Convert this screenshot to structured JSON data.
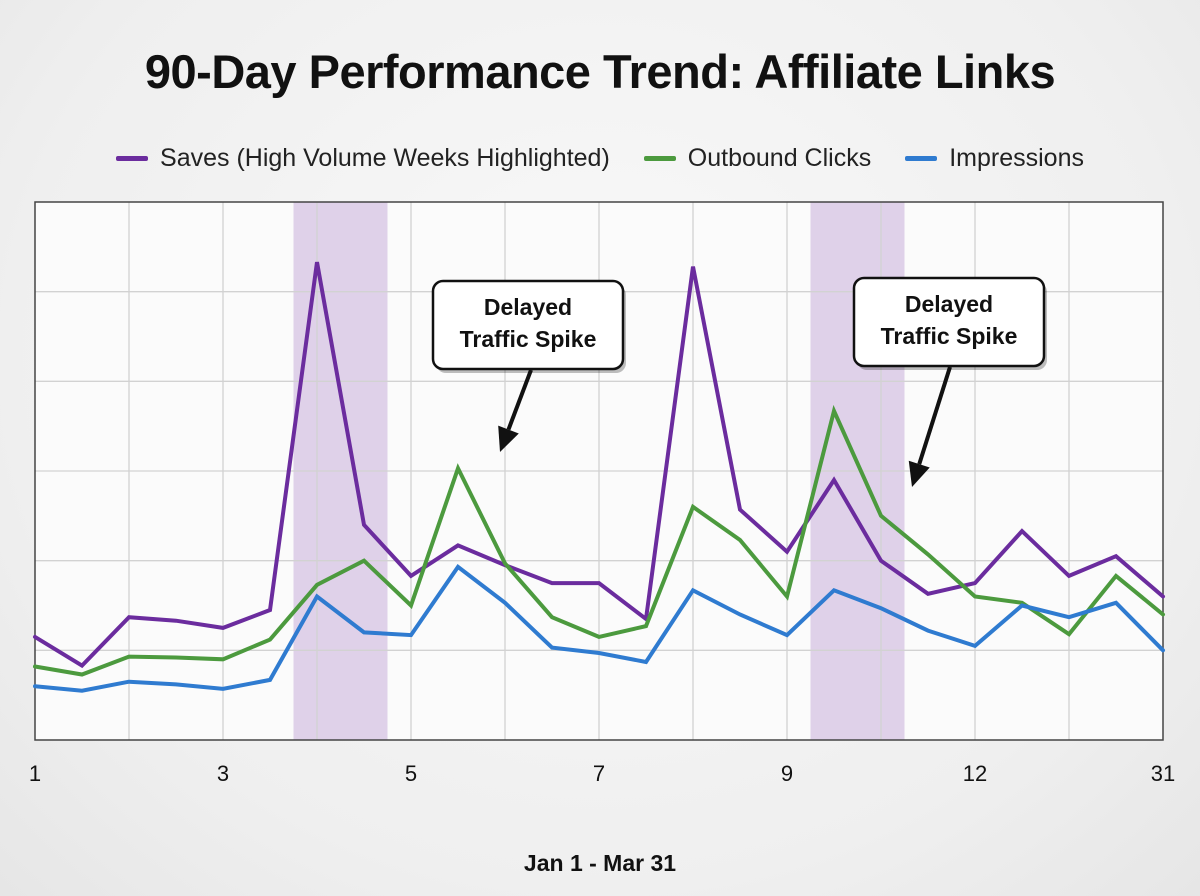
{
  "chart_data": {
    "type": "line",
    "title": "90-Day Performance Trend: Affiliate Links",
    "xlabel": "Jan 1 - Mar 31",
    "ylabel": "",
    "x_tick_labels": [
      "1",
      "3",
      "5",
      "7",
      "9",
      "12",
      "31"
    ],
    "x_count": 25,
    "ylim": [
      0,
      6
    ],
    "grid": true,
    "legend_position": "top",
    "highlight_bands": [
      [
        5.5,
        7.5
      ],
      [
        16.5,
        18.5
      ]
    ],
    "series": [
      {
        "name": "Saves (High Volume Weeks Highlighted)",
        "color": "#6b2c9e",
        "values": [
          1.15,
          0.83,
          1.37,
          1.33,
          1.25,
          1.45,
          5.33,
          2.4,
          1.83,
          2.17,
          1.95,
          1.75,
          1.75,
          1.35,
          5.28,
          2.57,
          2.1,
          2.9,
          2.0,
          1.63,
          1.75,
          2.33,
          1.83,
          2.05,
          1.6
        ]
      },
      {
        "name": "Outbound Clicks",
        "color": "#4c9a3e",
        "values": [
          0.82,
          0.73,
          0.93,
          0.92,
          0.9,
          1.12,
          1.73,
          2.0,
          1.5,
          3.03,
          1.97,
          1.37,
          1.15,
          1.27,
          2.6,
          2.23,
          1.6,
          3.67,
          2.5,
          2.07,
          1.6,
          1.53,
          1.18,
          1.83,
          1.4
        ]
      },
      {
        "name": "Impressions",
        "color": "#2f7bd0",
        "values": [
          0.6,
          0.55,
          0.65,
          0.62,
          0.57,
          0.67,
          1.6,
          1.2,
          1.17,
          1.93,
          1.53,
          1.03,
          0.97,
          0.87,
          1.67,
          1.4,
          1.17,
          1.67,
          1.47,
          1.22,
          1.05,
          1.5,
          1.37,
          1.53,
          1.0
        ]
      }
    ],
    "annotations": [
      {
        "lines": [
          "Delayed",
          "Traffic Spike"
        ],
        "points_to_index": 11
      },
      {
        "lines": [
          "Delayed",
          "Traffic Spike"
        ],
        "points_to_index": 20
      }
    ]
  }
}
